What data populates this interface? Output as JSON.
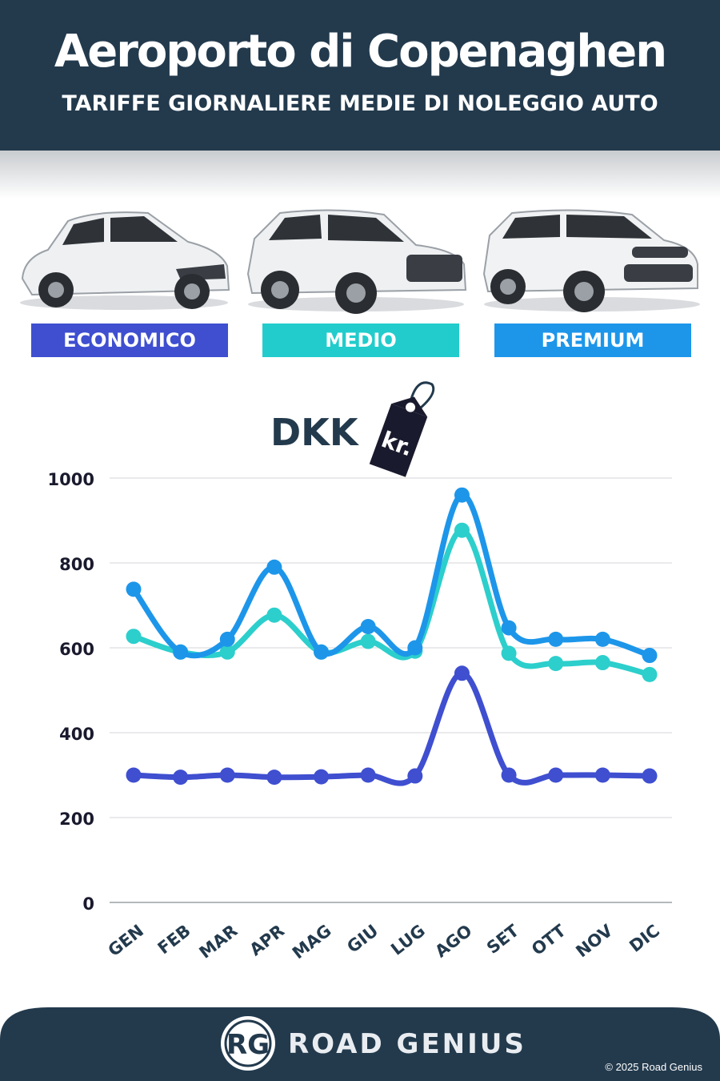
{
  "header": {
    "title": "Aeroporto di Copenaghen",
    "subtitle": "TARIFFE GIORNALIERE MEDIE DI NOLEGGIO AUTO"
  },
  "categories": [
    {
      "label": "ECONOMICO",
      "color": "#3f4fd0"
    },
    {
      "label": "MEDIO",
      "color": "#22cccc"
    },
    {
      "label": "PREMIUM",
      "color": "#1d96ea"
    }
  ],
  "currency": {
    "code": "DKK",
    "tag": "kr."
  },
  "chart_data": {
    "type": "line",
    "categories": [
      "GEN",
      "FEB",
      "MAR",
      "APR",
      "MAG",
      "GIU",
      "LUG",
      "AGO",
      "SET",
      "OTT",
      "NOV",
      "DIC"
    ],
    "ylim": [
      0,
      1000
    ],
    "yticks": [
      0,
      200,
      400,
      600,
      800,
      1000
    ],
    "grid": true,
    "series": [
      {
        "name": "ECONOMICO",
        "color": "#3f4fd0",
        "values": [
          300,
          295,
          300,
          295,
          296,
          300,
          298,
          540,
          300,
          300,
          300,
          298
        ]
      },
      {
        "name": "MEDIO",
        "color": "#2ccfcc",
        "values": [
          627,
          590,
          590,
          677,
          590,
          615,
          592,
          877,
          587,
          563,
          565,
          537
        ]
      },
      {
        "name": "PREMIUM",
        "color": "#1d96ea",
        "values": [
          738,
          590,
          620,
          790,
          590,
          650,
          600,
          960,
          647,
          620,
          620,
          582
        ]
      }
    ]
  },
  "footer": {
    "logo": "RG",
    "brand": "ROAD GENIUS",
    "copyright": "© 2025 Road Genius"
  }
}
